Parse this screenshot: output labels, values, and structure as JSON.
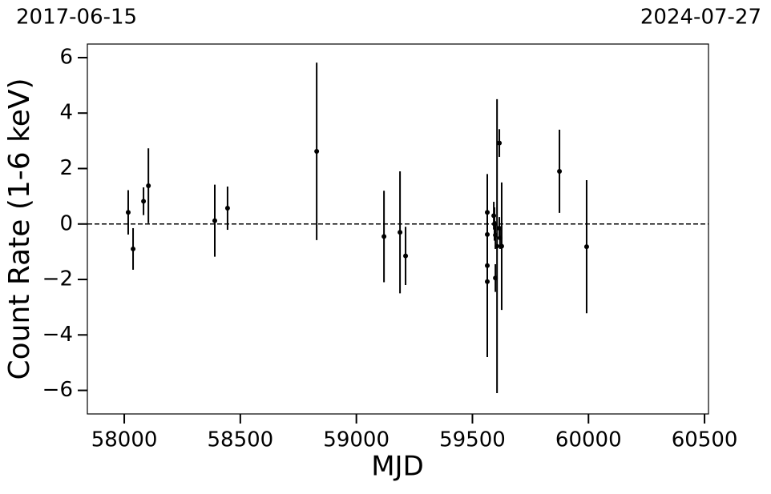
{
  "chart_data": {
    "type": "errorbar-scatter",
    "start_label": "2017-06-15",
    "end_label": "2024-07-27",
    "xlabel": "MJD",
    "ylabel": "Count Rate (1-6 keV)",
    "xlim": [
      57841,
      60517
    ],
    "ylim": [
      -6.85,
      6.49
    ],
    "xticks": [
      58000,
      58500,
      59000,
      59500,
      60000,
      60500
    ],
    "yticks": [
      {
        "value": -6,
        "label": "−6"
      },
      {
        "value": -4,
        "label": "−4"
      },
      {
        "value": -2,
        "label": "−2"
      },
      0,
      2,
      4,
      6
    ],
    "hline": 0,
    "color": "#000000",
    "x": [
      58017,
      58038,
      58083,
      58104,
      58390,
      58445,
      58829,
      59119,
      59188,
      59212,
      59564,
      59564,
      59564,
      59564,
      59592,
      59595,
      59599,
      59599,
      59606,
      59616,
      59616,
      59619,
      59626,
      59875,
      59992
    ],
    "values": [
      0.42,
      -0.9,
      0.82,
      1.38,
      0.12,
      0.57,
      2.62,
      -0.45,
      -0.3,
      -1.15,
      0.42,
      -0.38,
      -1.5,
      -2.08,
      0.3,
      0.0,
      -0.4,
      -1.95,
      -0.8,
      2.92,
      -0.15,
      -0.5,
      -0.8,
      1.9,
      -0.82
    ],
    "errors": [
      0.8,
      0.75,
      0.5,
      1.35,
      1.3,
      0.78,
      3.2,
      1.65,
      2.2,
      1.05,
      1.0,
      1.1,
      3.3,
      0.6,
      0.5,
      0.6,
      0.5,
      0.5,
      5.3,
      0.5,
      0.4,
      0.4,
      2.3,
      1.5,
      2.4
    ]
  }
}
